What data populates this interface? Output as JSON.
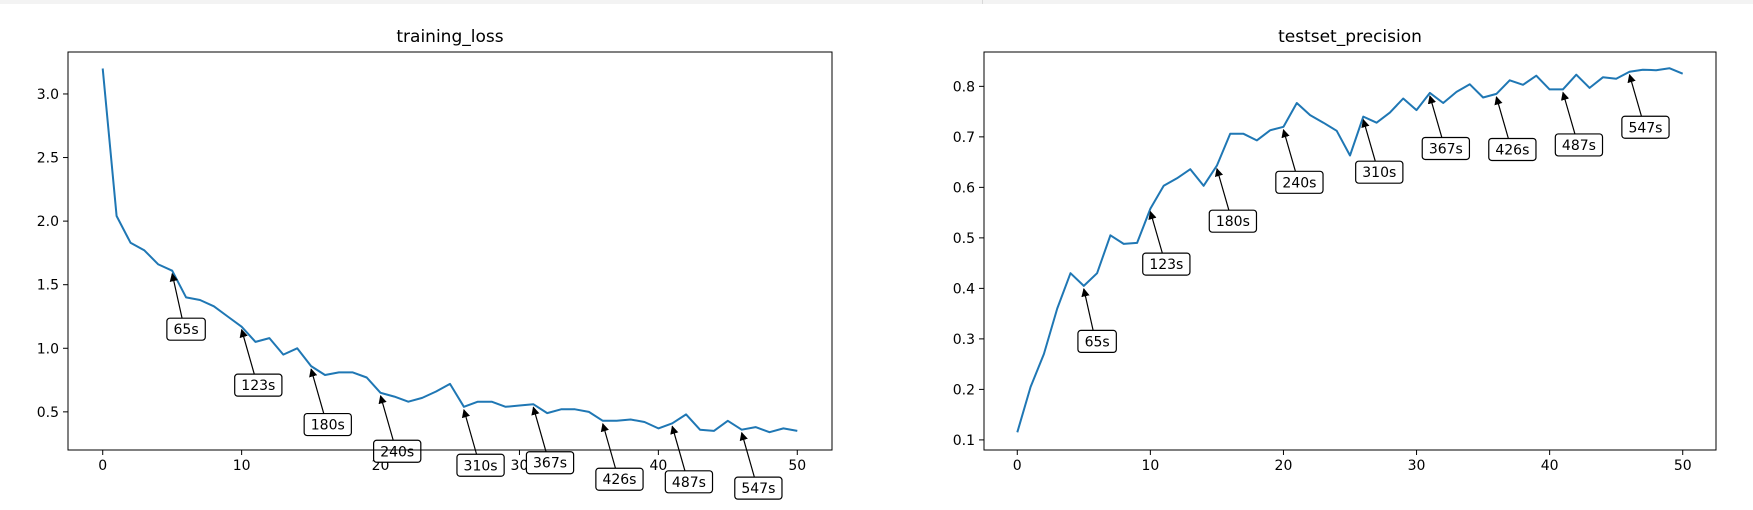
{
  "chart_data": [
    {
      "type": "line",
      "title": "training_loss",
      "xlabel": "",
      "ylabel": "",
      "xlim": [
        -2.5,
        52.5
      ],
      "ylim": [
        0.2,
        3.33
      ],
      "xticks": [
        0,
        10,
        20,
        30,
        40,
        50
      ],
      "yticks": [
        0.5,
        1.0,
        1.5,
        2.0,
        2.5,
        3.0
      ],
      "xtick_labels": [
        "0",
        "10",
        "20",
        "30",
        "40",
        "50"
      ],
      "ytick_labels": [
        "0.5",
        "1.0",
        "1.5",
        "2.0",
        "2.5",
        "3.0"
      ],
      "grid": false,
      "line_color": "#1f77b4",
      "x": [
        0,
        1,
        2,
        3,
        4,
        5,
        6,
        7,
        8,
        9,
        10,
        11,
        12,
        13,
        14,
        15,
        16,
        17,
        18,
        19,
        20,
        21,
        22,
        23,
        24,
        25,
        26,
        27,
        28,
        29,
        30,
        31,
        32,
        33,
        34,
        35,
        36,
        37,
        38,
        39,
        40,
        41,
        42,
        43,
        44,
        45,
        46,
        47,
        48,
        49,
        50
      ],
      "values": [
        3.2,
        2.04,
        1.83,
        1.77,
        1.66,
        1.61,
        1.4,
        1.38,
        1.33,
        1.25,
        1.17,
        1.05,
        1.08,
        0.95,
        1.0,
        0.86,
        0.79,
        0.81,
        0.81,
        0.77,
        0.65,
        0.62,
        0.58,
        0.61,
        0.66,
        0.72,
        0.54,
        0.58,
        0.58,
        0.54,
        0.55,
        0.56,
        0.49,
        0.52,
        0.52,
        0.5,
        0.43,
        0.43,
        0.44,
        0.42,
        0.37,
        0.41,
        0.48,
        0.36,
        0.35,
        0.43,
        0.36,
        0.38,
        0.34,
        0.37,
        0.35
      ],
      "annotations": [
        {
          "text": "65s",
          "x": 5,
          "y": 1.61,
          "tx": 6,
          "ty": 1.15
        },
        {
          "text": "123s",
          "x": 10,
          "y": 1.17,
          "tx": 11.2,
          "ty": 0.71
        },
        {
          "text": "180s",
          "x": 15,
          "y": 0.86,
          "tx": 16.2,
          "ty": 0.4
        },
        {
          "text": "240s",
          "x": 20,
          "y": 0.65,
          "tx": 21.2,
          "ty": 0.19
        },
        {
          "text": "310s",
          "x": 26,
          "y": 0.54,
          "tx": 27.2,
          "ty": 0.08
        },
        {
          "text": "367s",
          "x": 31,
          "y": 0.56,
          "tx": 32.2,
          "ty": 0.1
        },
        {
          "text": "426s",
          "x": 36,
          "y": 0.43,
          "tx": 37.2,
          "ty": -0.03
        },
        {
          "text": "487s",
          "x": 41,
          "y": 0.41,
          "tx": 42.2,
          "ty": -0.05
        },
        {
          "text": "547s",
          "x": 46,
          "y": 0.36,
          "tx": 47.2,
          "ty": -0.1
        }
      ]
    },
    {
      "type": "line",
      "title": "testset_precision",
      "xlabel": "",
      "ylabel": "",
      "xlim": [
        -2.5,
        52.5
      ],
      "ylim": [
        0.08,
        0.868
      ],
      "xticks": [
        0,
        10,
        20,
        30,
        40,
        50
      ],
      "yticks": [
        0.1,
        0.2,
        0.3,
        0.4,
        0.5,
        0.6,
        0.7,
        0.8
      ],
      "xtick_labels": [
        "0",
        "10",
        "20",
        "30",
        "40",
        "50"
      ],
      "ytick_labels": [
        "0.1",
        "0.2",
        "0.3",
        "0.4",
        "0.5",
        "0.6",
        "0.7",
        "0.8"
      ],
      "grid": false,
      "line_color": "#1f77b4",
      "x": [
        0,
        1,
        2,
        3,
        4,
        5,
        6,
        7,
        8,
        9,
        10,
        11,
        12,
        13,
        14,
        15,
        16,
        17,
        18,
        19,
        20,
        21,
        22,
        23,
        24,
        25,
        26,
        27,
        28,
        29,
        30,
        31,
        32,
        33,
        34,
        35,
        36,
        37,
        38,
        39,
        40,
        41,
        42,
        43,
        44,
        45,
        46,
        47,
        48,
        49,
        50
      ],
      "values": [
        0.115,
        0.205,
        0.27,
        0.36,
        0.43,
        0.405,
        0.43,
        0.505,
        0.488,
        0.49,
        0.558,
        0.603,
        0.618,
        0.636,
        0.603,
        0.643,
        0.706,
        0.706,
        0.693,
        0.713,
        0.72,
        0.767,
        0.743,
        0.728,
        0.712,
        0.663,
        0.74,
        0.728,
        0.748,
        0.776,
        0.753,
        0.787,
        0.767,
        0.789,
        0.804,
        0.778,
        0.785,
        0.812,
        0.803,
        0.821,
        0.794,
        0.794,
        0.823,
        0.797,
        0.818,
        0.815,
        0.829,
        0.833,
        0.832,
        0.836,
        0.825
      ],
      "annotations": [
        {
          "text": "65s",
          "x": 5,
          "y": 0.405,
          "tx": 6,
          "ty": 0.295
        },
        {
          "text": "123s",
          "x": 10,
          "y": 0.558,
          "tx": 11.2,
          "ty": 0.448
        },
        {
          "text": "180s",
          "x": 15,
          "y": 0.643,
          "tx": 16.2,
          "ty": 0.533
        },
        {
          "text": "240s",
          "x": 20,
          "y": 0.72,
          "tx": 21.2,
          "ty": 0.61
        },
        {
          "text": "310s",
          "x": 26,
          "y": 0.74,
          "tx": 27.2,
          "ty": 0.63
        },
        {
          "text": "367s",
          "x": 31,
          "y": 0.787,
          "tx": 32.2,
          "ty": 0.677
        },
        {
          "text": "426s",
          "x": 36,
          "y": 0.785,
          "tx": 37.2,
          "ty": 0.675
        },
        {
          "text": "487s",
          "x": 41,
          "y": 0.794,
          "tx": 42.2,
          "ty": 0.684
        },
        {
          "text": "547s",
          "x": 46,
          "y": 0.829,
          "tx": 47.2,
          "ty": 0.719
        }
      ]
    }
  ]
}
